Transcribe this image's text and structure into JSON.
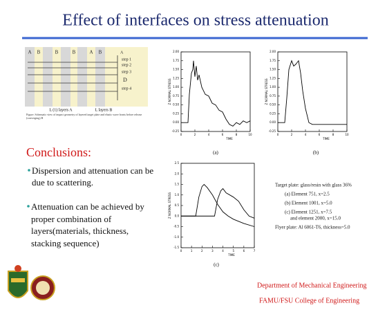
{
  "header": {
    "title": "Effect of interfaces on stress attenuation"
  },
  "diagram": {
    "layer_labels": [
      "A",
      "B",
      "B",
      "B",
      "A",
      "B"
    ],
    "right_labels": [
      "A",
      "step 1",
      "step 2",
      "step 3",
      "D",
      "step 4"
    ],
    "bottom_labels": [
      "L (1) layers A",
      "L layers B"
    ],
    "caption": "Figure: Schematic view of impact geometry of layered target plate and elastic wave fronts before release (converging) B"
  },
  "conclusions": {
    "heading": "Conclusions:",
    "bullets": [
      "Dispersion and attenuation can be due to scattering.",
      "Attenuation can be achieved by proper combination of layers(materials, thickness, stacking sequence)"
    ]
  },
  "plots": [
    {
      "type": "line",
      "caption": "(a)",
      "y_label": "Z NORMAL STRESS",
      "x_label": "TIME",
      "xlim": [
        0,
        10
      ],
      "xticks": [
        0,
        2,
        4,
        6,
        8,
        10
      ],
      "ylim": [
        -0.25,
        2.0
      ],
      "yticks": [
        {
          "value": 2,
          "label": "2.00"
        },
        1.75,
        {
          "value": 1.5,
          "label": "1.50"
        },
        1.25,
        {
          "value": 1,
          "label": "1.00"
        },
        0.75,
        {
          "value": 0.5,
          "label": "0.50"
        },
        0.25,
        {
          "value": 0,
          "label": "0.00"
        },
        -0.25
      ],
      "series": [
        {
          "color": "#000000",
          "x": [
            0,
            1,
            1.2,
            1.5,
            1.7,
            1.8,
            2.0,
            2.2,
            2.4,
            2.6,
            3,
            3.5,
            4,
            4.5,
            5,
            5.5,
            6,
            6.5,
            7,
            7.5,
            8,
            8.5,
            9,
            9.5,
            10
          ],
          "values": [
            0,
            0,
            0.8,
            1.4,
            1.5,
            1.75,
            1.3,
            1.6,
            1.2,
            1.35,
            1.0,
            0.8,
            0.75,
            0.55,
            0.5,
            0.35,
            0.3,
            0.1,
            -0.05,
            -0.1,
            0,
            -0.05,
            0.05,
            0,
            0.05
          ]
        }
      ]
    },
    {
      "type": "line",
      "caption": "(b)",
      "y_label": "Z NORMAL STRESS",
      "x_label": "TIME",
      "xlim": [
        0,
        10
      ],
      "xticks": [
        0,
        2,
        4,
        6,
        8,
        10
      ],
      "ylim": [
        -0.25,
        2.0
      ],
      "yticks": [
        {
          "value": 2,
          "label": "2.00"
        },
        1.75,
        {
          "value": 1.5,
          "label": "1.50"
        },
        1.25,
        {
          "value": 1,
          "label": "1.00"
        },
        0.75,
        {
          "value": 0.5,
          "label": "0.50"
        },
        0.25,
        {
          "value": 0,
          "label": "0.00"
        },
        -0.25
      ],
      "series": [
        {
          "color": "#000000",
          "x": [
            0,
            1,
            1.3,
            1.6,
            2,
            2.3,
            2.6,
            3,
            3.3,
            3.6,
            4,
            4.5,
            5,
            6,
            7,
            8,
            9,
            10
          ],
          "values": [
            0,
            0,
            0.7,
            1.5,
            1.75,
            1.6,
            1.65,
            1.75,
            1.4,
            0.9,
            0.4,
            0,
            -0.05,
            -0.05,
            -0.05,
            -0.05,
            -0.05,
            -0.05
          ]
        }
      ]
    },
    {
      "type": "line",
      "caption": "(c)",
      "y_label": "Z NORMAL STRESS",
      "x_label": "TIME",
      "xlim": [
        0,
        7
      ],
      "xticks": [
        0,
        1,
        2,
        3,
        4,
        5,
        6,
        7
      ],
      "ylim": [
        -1.5,
        2.5
      ],
      "yticks": [
        2.5,
        {
          "value": 2,
          "label": "2.0"
        },
        1.5,
        {
          "value": 1,
          "label": "1.0"
        },
        0.5,
        {
          "value": 0,
          "label": "0.0"
        },
        -0.5,
        {
          "value": -1,
          "label": "-1.0"
        },
        -1.5
      ],
      "series": [
        {
          "color": "#000000",
          "x": [
            0,
            1.4,
            1.7,
            2.0,
            2.2,
            2.5,
            3,
            3.5,
            4,
            4.5,
            5,
            6,
            7
          ],
          "values": [
            0,
            0,
            0.9,
            1.4,
            1.5,
            1.35,
            1.0,
            0.55,
            0.2,
            0,
            -0.15,
            -0.35,
            -0.5
          ]
        },
        {
          "color": "#000000",
          "x": [
            0,
            3.2,
            3.5,
            3.8,
            4.0,
            4.3,
            5,
            5.5,
            6,
            6.5,
            7
          ],
          "values": [
            0,
            0,
            0.8,
            1.2,
            1.3,
            1.1,
            0.9,
            0.7,
            0.3,
            0,
            -0.1
          ]
        }
      ]
    }
  ],
  "notes": {
    "lines": [
      "Target plate: glass/resin with glass 36%",
      "(a) Element 751, x=2.5",
      "(b) Element 1001, x=5.0",
      "(c) Element 1251, x=7.5",
      "and element 2000, x=15.0",
      "Flyer plate: Al 6061-T6, thickness=5.0"
    ]
  },
  "footer": {
    "department": "Department of Mechanical Engineering",
    "college": "FAMU/FSU College of Engineering"
  }
}
